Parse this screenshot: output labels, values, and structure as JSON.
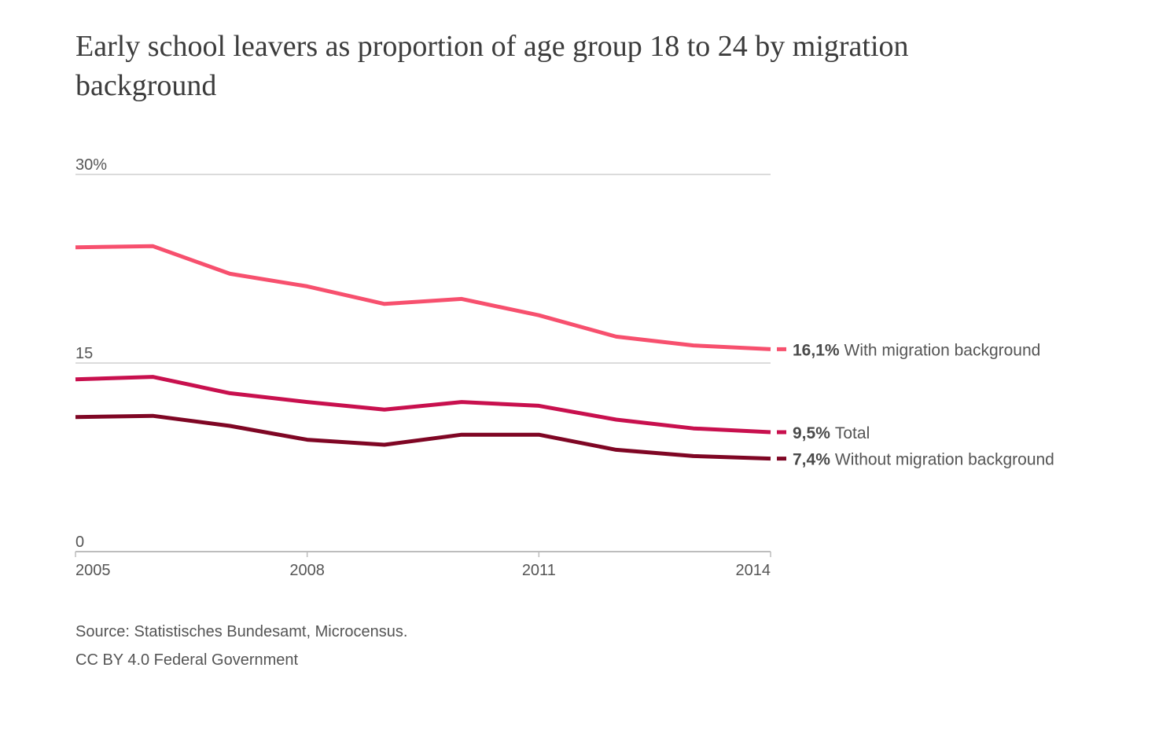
{
  "title": "Early school leavers as proportion of age group 18 to 24 by migration background",
  "footer": {
    "source": "Source: Statistisches Bundesamt, Microcensus.",
    "license": "CC BY 4.0 Federal Government"
  },
  "chart_data": {
    "type": "line",
    "title": "Early school leavers as proportion of age group 18 to 24 by migration background",
    "xlabel": "",
    "ylabel": "",
    "x": [
      2005,
      2006,
      2007,
      2008,
      2009,
      2010,
      2011,
      2012,
      2013,
      2014
    ],
    "xlim": [
      2005,
      2014
    ],
    "ylim": [
      0,
      30
    ],
    "x_ticks": [
      {
        "value": 2005,
        "label": "2005"
      },
      {
        "value": 2008,
        "label": "2008"
      },
      {
        "value": 2011,
        "label": "2011"
      },
      {
        "value": 2014,
        "label": "2014"
      }
    ],
    "y_ticks": [
      {
        "value": 0,
        "label": "0"
      },
      {
        "value": 15,
        "label": "15"
      },
      {
        "value": 30,
        "label": "30%"
      }
    ],
    "grid": true,
    "legend": "inline-right",
    "series": [
      {
        "name": "With migration background",
        "end_label_value": "16,1%",
        "color": "#f7506e",
        "values": [
          24.2,
          24.3,
          22.1,
          21.1,
          19.7,
          20.1,
          18.8,
          17.1,
          16.4,
          16.1
        ]
      },
      {
        "name": "Total",
        "end_label_value": "9,5%",
        "color": "#c8104e",
        "values": [
          13.7,
          13.9,
          12.6,
          11.9,
          11.3,
          11.9,
          11.6,
          10.5,
          9.8,
          9.5
        ]
      },
      {
        "name": "Without migration background",
        "end_label_value": "7,4%",
        "color": "#7f0624",
        "values": [
          10.7,
          10.8,
          10.0,
          8.9,
          8.5,
          9.3,
          9.3,
          8.1,
          7.6,
          7.4
        ]
      }
    ]
  }
}
